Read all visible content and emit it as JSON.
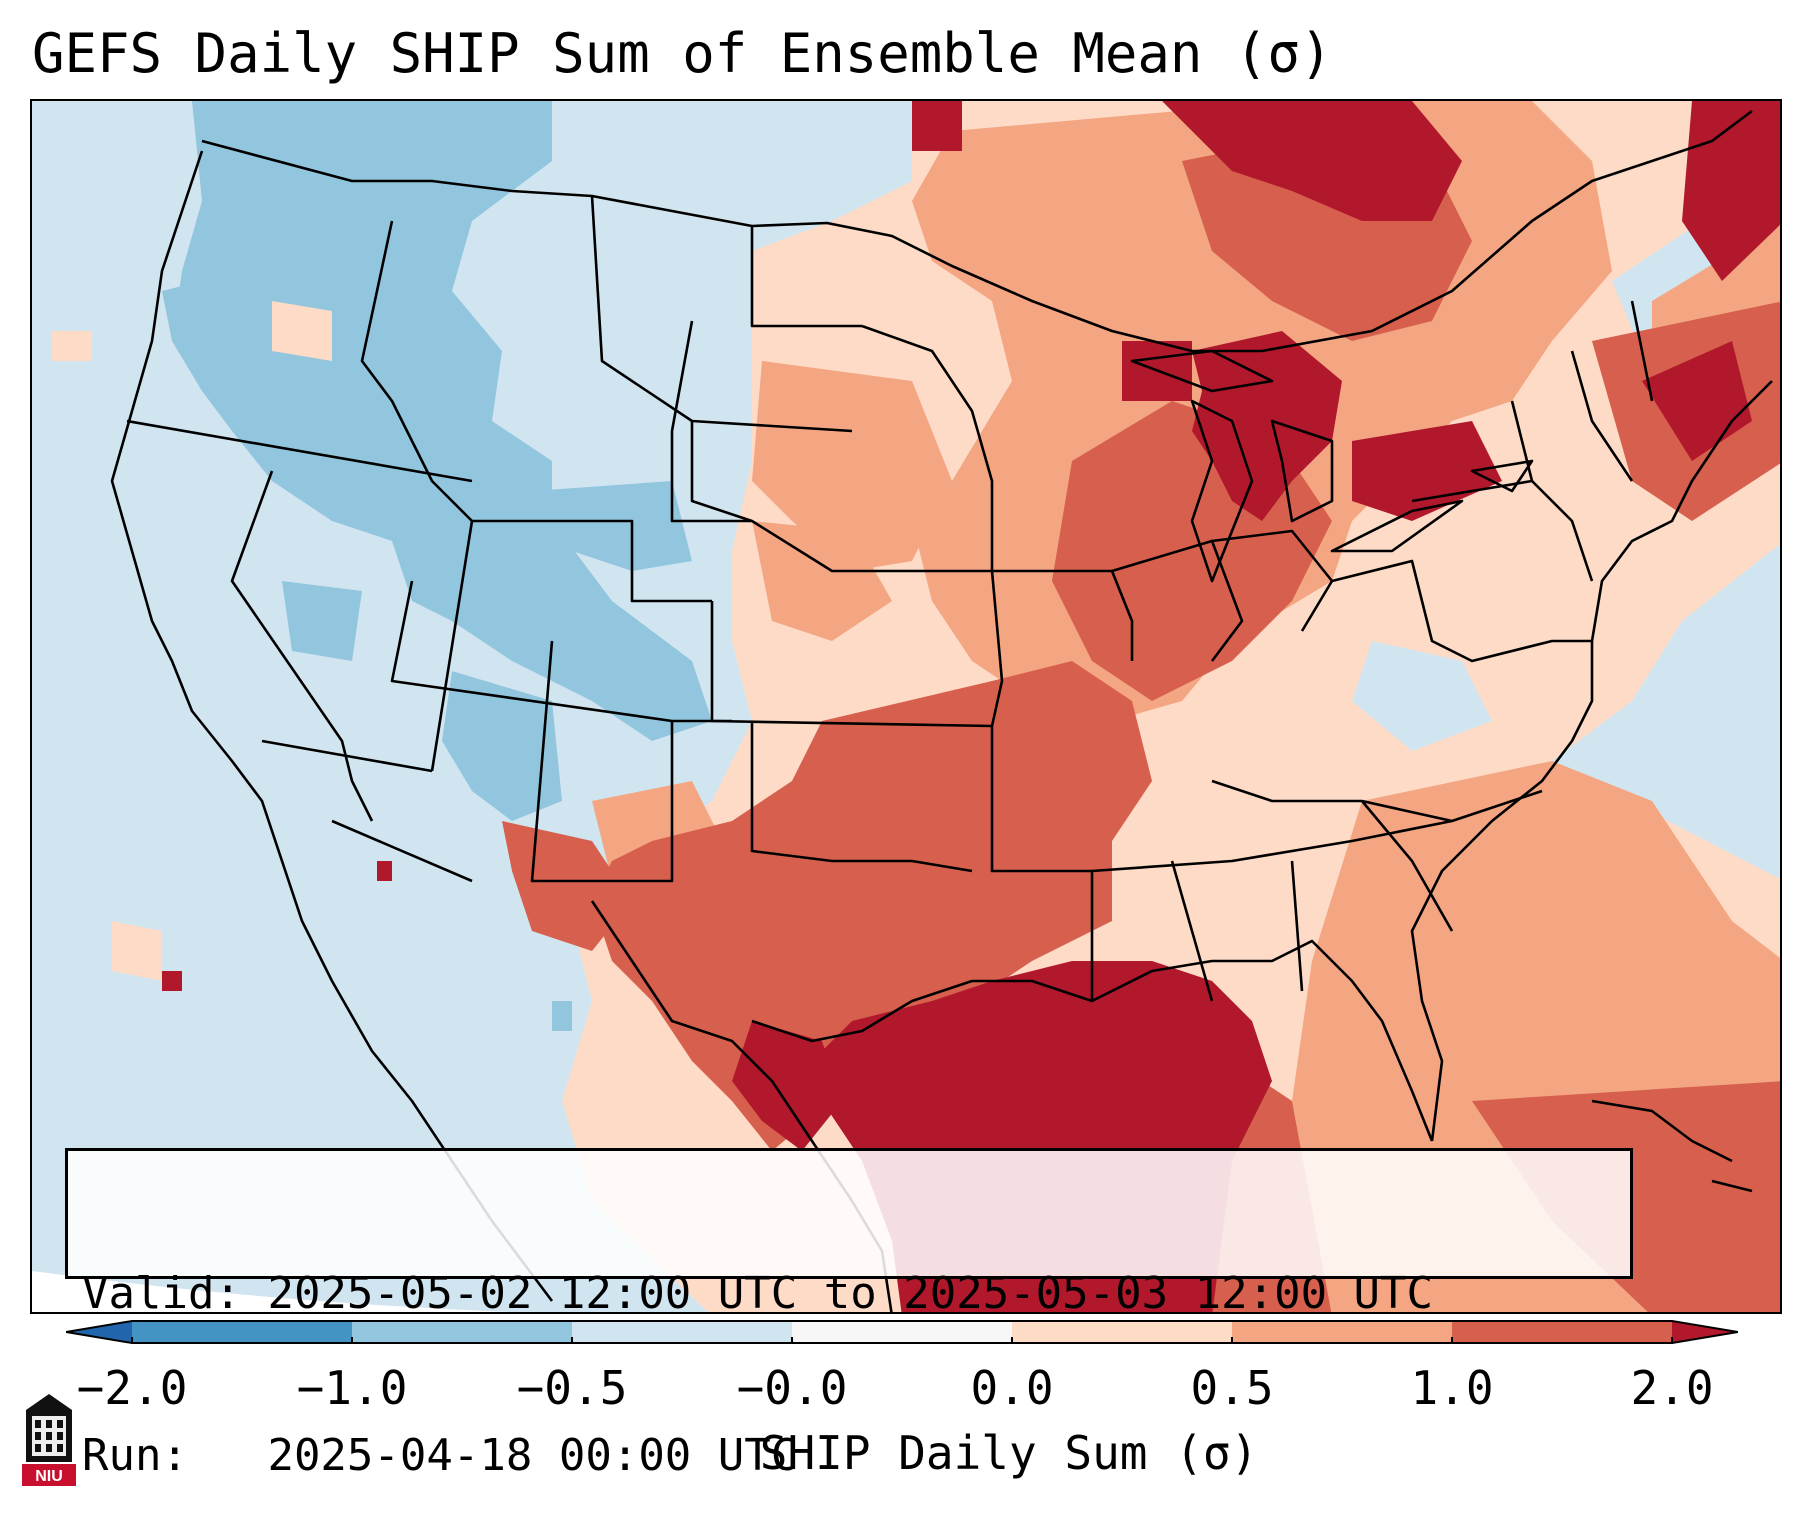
{
  "title": "GEFS Daily SHIP Sum of Ensemble Mean (σ)",
  "valid_label": "Valid:",
  "valid_value": "2025-05-02 12:00 UTC to 2025-05-03 12:00 UTC",
  "run_label": "Run:",
  "run_value": "2025-04-18 00:00 UTC",
  "colorbar": {
    "label": "SHIP Daily Sum (σ)",
    "ticks": [
      "−2.0",
      "−1.0",
      "−0.5",
      "−0.0",
      "0.0",
      "0.5",
      "1.0",
      "2.0"
    ],
    "bins": [
      {
        "from": "under",
        "to": -2.0,
        "color": "#2166ac"
      },
      {
        "from": -2.0,
        "to": -1.0,
        "color": "#4393c3"
      },
      {
        "from": -1.0,
        "to": -0.5,
        "color": "#92c5de"
      },
      {
        "from": -0.5,
        "to": -0.0,
        "color": "#d1e5f0"
      },
      {
        "from": -0.0,
        "to": 0.0,
        "color": "#f7f7f7"
      },
      {
        "from": 0.0,
        "to": 0.5,
        "color": "#fddbc7"
      },
      {
        "from": 0.5,
        "to": 1.0,
        "color": "#f4a582"
      },
      {
        "from": 1.0,
        "to": 2.0,
        "color": "#d6604d"
      },
      {
        "from": 2.0,
        "to": "over",
        "color": "#b2182b"
      }
    ]
  },
  "logo": {
    "icon": "niu-tower-logo",
    "text": "NIU"
  },
  "map": {
    "region": "Contiguous United States",
    "background_category": "-0.5 to -0.0",
    "patterns": [
      {
        "area": "Pacific Northwest and Rockies",
        "category": "-1.0 to -0.5"
      },
      {
        "area": "Great Basin and California",
        "category": "-0.5 to -0.0"
      },
      {
        "area": "Northern and Central Plains",
        "category": "0.0 to 1.0"
      },
      {
        "area": "Southern Plains and Lower Mississippi Valley",
        "category": "1.0 to 2.0"
      },
      {
        "area": "Gulf of Mexico and Great Lakes",
        "category": "over 2.0"
      },
      {
        "area": "Southeast and Western Atlantic",
        "category": "0.0 to 1.0"
      }
    ]
  }
}
